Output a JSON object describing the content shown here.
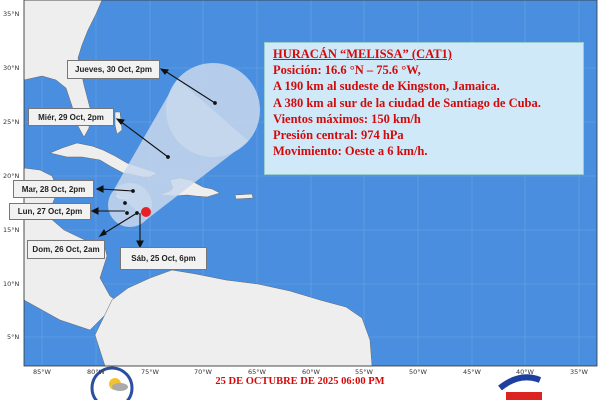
{
  "storm": {
    "title": "HURACÁN “MELISSA” (CAT1)",
    "lines": [
      "Posición: 16.6 °N –  75.6 °W,",
      "A 190 km al sudeste de Kingston, Jamaica.",
      "A 380 km al sur de la ciudad de Santiago de Cuba.",
      "Vientos máximos: 150 km/h",
      "Presión central: 974 hPa",
      "Movimiento: Oeste a 6 km/h."
    ],
    "position": {
      "lat": 16.6,
      "lon": -75.6
    }
  },
  "forecast_labels": [
    "Jueves, 30 Oct, 2pm",
    "Miér, 29 Oct, 2pm",
    "Mar, 28 Oct, 2pm",
    "Lun, 27 Oct, 2pm",
    "Dom, 26 Oct, 2am",
    "Sáb, 25 Oct, 6pm"
  ],
  "lat_ticks": [
    "35°N",
    "30°N",
    "25°N",
    "20°N",
    "15°N",
    "10°N",
    "5°N"
  ],
  "lon_ticks": [
    "85°W",
    "80°W",
    "75°W",
    "70°W",
    "65°W",
    "60°W",
    "55°W",
    "50°W",
    "45°W",
    "40°W",
    "35°W"
  ],
  "date": "25 DE OCTUBRE DE 2025 06:00 PM",
  "logos": {
    "right": "INSMET"
  },
  "colors": {
    "ocean": "#4a8fdf",
    "land": "#eeeeee",
    "cone": "#c8d8ec",
    "storm": "#e8202a",
    "text": "#d30a0a"
  }
}
